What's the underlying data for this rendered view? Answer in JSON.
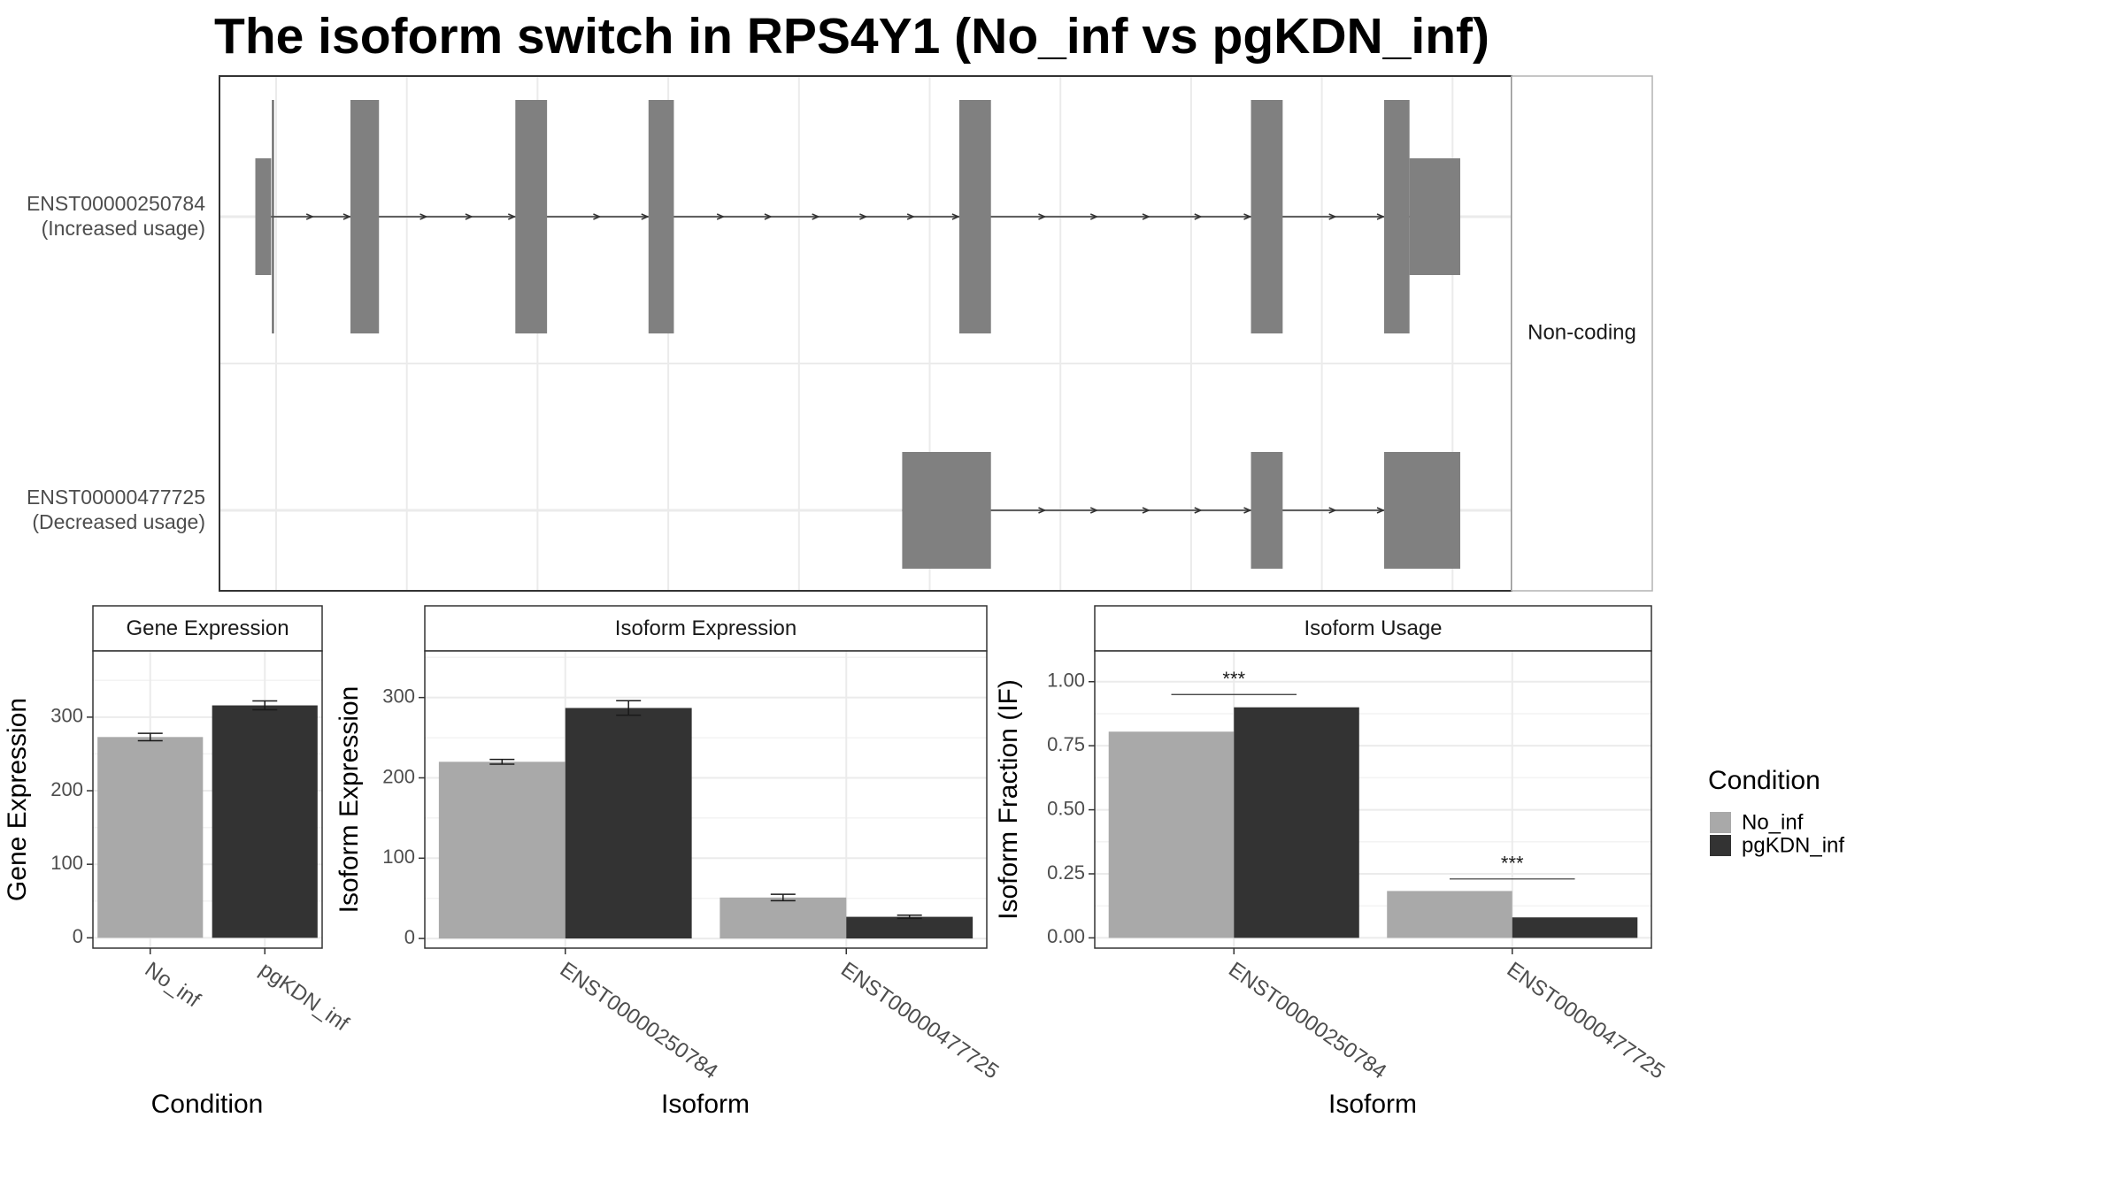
{
  "title": "The isoform switch in RPS4Y1 (No_inf vs pgKDN_inf)",
  "colors": {
    "No_inf": "#a9a9a9",
    "pgKDN_inf": "#333333",
    "exon": "#808080",
    "grid": "#ebebeb",
    "border": "#333333"
  },
  "structure": {
    "facet_label": "Non-coding",
    "isoforms": [
      {
        "id": "ENST00000250784",
        "label": "ENST00000250784",
        "usage": "(Increased usage)",
        "exons": [
          [
            -0.3,
            -0.05,
            "utr"
          ],
          [
            1.2,
            1.65,
            "cds"
          ],
          [
            3.8,
            4.3,
            "cds"
          ],
          [
            5.9,
            6.3,
            "cds"
          ],
          [
            10.8,
            11.3,
            "cds"
          ],
          [
            15.4,
            15.9,
            "cds"
          ],
          [
            17.5,
            17.9,
            "cds"
          ],
          [
            17.9,
            18.7,
            "utr"
          ]
        ],
        "tss_line": -0.05
      },
      {
        "id": "ENST00000477725",
        "label": "ENST00000477725",
        "usage": "(Decreased usage)",
        "exons": [
          [
            9.9,
            11.3,
            "utr"
          ],
          [
            15.4,
            15.9,
            "utr"
          ],
          [
            17.5,
            18.7,
            "utr"
          ]
        ]
      }
    ]
  },
  "chart_data": [
    {
      "type": "bar",
      "title": "Gene Expression",
      "xlabel": "Condition",
      "ylabel": "Gene Expression",
      "categories": [
        "No_inf",
        "pgKDN_inf"
      ],
      "values": [
        273,
        316
      ],
      "errors": [
        5,
        6
      ],
      "ylim": [
        -14,
        390
      ],
      "yticks": [
        0,
        100,
        200,
        300
      ],
      "yticklabels": [
        "0",
        "100",
        "200",
        "300"
      ]
    },
    {
      "type": "bar",
      "title": "Isoform Expression",
      "xlabel": "Isoform",
      "ylabel": "Isoform Expression",
      "categories": [
        "ENST00000250784",
        "ENST00000477725"
      ],
      "series": [
        {
          "name": "No_inf",
          "values": [
            220,
            51
          ],
          "errors": [
            3,
            4
          ]
        },
        {
          "name": "pgKDN_inf",
          "values": [
            287,
            27
          ],
          "errors": [
            9,
            2
          ]
        }
      ],
      "ylim": [
        -12,
        358
      ],
      "yticks": [
        0,
        100,
        200,
        300
      ],
      "yticklabels": [
        "0",
        "100",
        "200",
        "300"
      ]
    },
    {
      "type": "bar",
      "title": "Isoform Usage",
      "xlabel": "Isoform",
      "ylabel": "Isoform Fraction (IF)",
      "categories": [
        "ENST00000250784",
        "ENST00000477725"
      ],
      "series": [
        {
          "name": "No_inf",
          "values": [
            0.805,
            0.183
          ]
        },
        {
          "name": "pgKDN_inf",
          "values": [
            0.9,
            0.08
          ]
        }
      ],
      "significance": [
        {
          "category": "ENST00000250784",
          "label": "***",
          "y": 0.95
        },
        {
          "category": "ENST00000477725",
          "label": "***",
          "y": 0.23
        }
      ],
      "ylim": [
        -0.04,
        1.12
      ],
      "yticks": [
        0,
        0.25,
        0.5,
        0.75,
        1
      ],
      "yticklabels": [
        "0.00",
        "0.25",
        "0.50",
        "0.75",
        "1.00"
      ]
    }
  ],
  "legend": {
    "title": "Condition",
    "items": [
      {
        "name": "No_inf",
        "color": "#a9a9a9"
      },
      {
        "name": "pgKDN_inf",
        "color": "#333333"
      }
    ]
  }
}
